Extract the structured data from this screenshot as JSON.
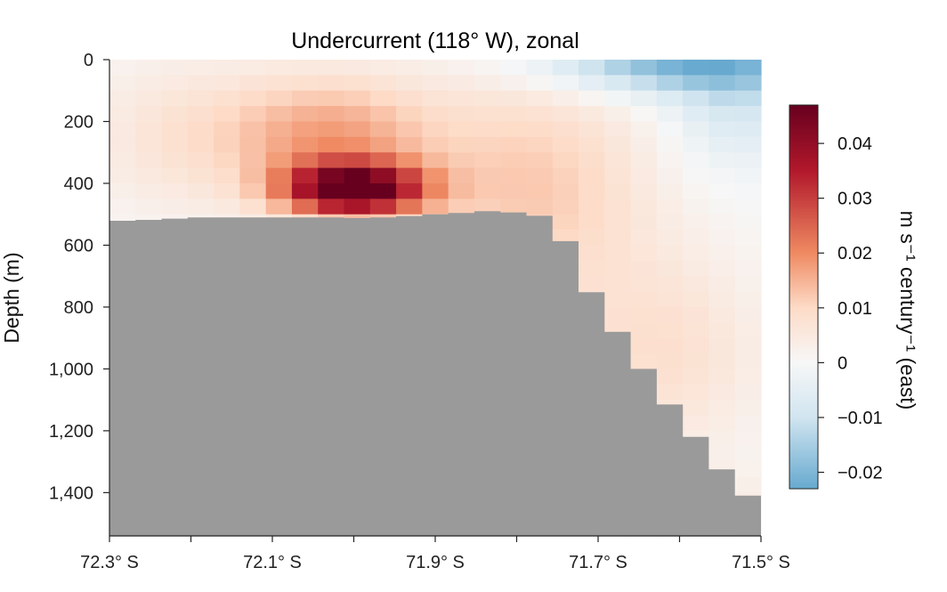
{
  "chart_data": {
    "type": "heatmap",
    "title": "Undercurrent (118° W), zonal",
    "ylabel": "Depth (m)",
    "colorbar": {
      "label": "m s⁻¹ century⁻¹ (east)",
      "range": [
        -0.023,
        0.047
      ],
      "ticks": [
        0.04,
        0.03,
        0.02,
        0.01,
        0,
        -0.01,
        -0.02
      ],
      "tick_labels": [
        "0.04",
        "0.03",
        "0.02",
        "0.01",
        "0",
        "−0.01",
        "−0.02"
      ],
      "colormap": [
        "#67a9cf",
        "#d1e5f0",
        "#f7f7f7",
        "#fddbc7",
        "#ef8a62",
        "#b2182b",
        "#67001f"
      ]
    },
    "x_axis": {
      "range": [
        72.3,
        71.5
      ],
      "ticks": [
        72.3,
        72.2,
        72.1,
        72.0,
        71.9,
        71.8,
        71.7,
        71.6,
        71.5
      ],
      "labeled_ticks": [
        {
          "value": 72.3,
          "label": "72.3° S"
        },
        {
          "value": 72.1,
          "label": "72.1° S"
        },
        {
          "value": 71.9,
          "label": "71.9° S"
        },
        {
          "value": 71.7,
          "label": "71.7° S"
        },
        {
          "value": 71.5,
          "label": "71.5° S"
        }
      ]
    },
    "y_axis": {
      "range": [
        0,
        1540
      ],
      "inverted": true,
      "ticks": [
        0,
        200,
        400,
        600,
        800,
        1000,
        1200,
        1400
      ],
      "tick_labels": [
        "0",
        "200",
        "400",
        "600",
        "800",
        "1,000",
        "1,200",
        "1,400"
      ]
    },
    "grid": {
      "columns": 25,
      "lat_start": 72.3,
      "lat_end": 71.5,
      "depth_levels": [
        0,
        50,
        100,
        150,
        200,
        250,
        300,
        350,
        400,
        450,
        500,
        550,
        600,
        650,
        700,
        750,
        800,
        850,
        900,
        950,
        1000,
        1050,
        1100,
        1150,
        1200,
        1250,
        1300,
        1350,
        1400,
        1450,
        1500,
        1540
      ],
      "seafloor_depth_m": [
        521,
        518,
        514,
        510,
        510,
        510,
        510,
        510,
        510,
        512,
        510,
        506,
        500,
        496,
        490,
        494,
        505,
        587,
        752,
        880,
        1000,
        1115,
        1220,
        1325,
        1410
      ],
      "core": {
        "lat": 72.0,
        "depth_m": 420,
        "value": 0.047
      },
      "surface_negative": {
        "lat": 71.6,
        "depth_m": 0,
        "value": -0.021
      }
    },
    "grid_lines": false
  }
}
